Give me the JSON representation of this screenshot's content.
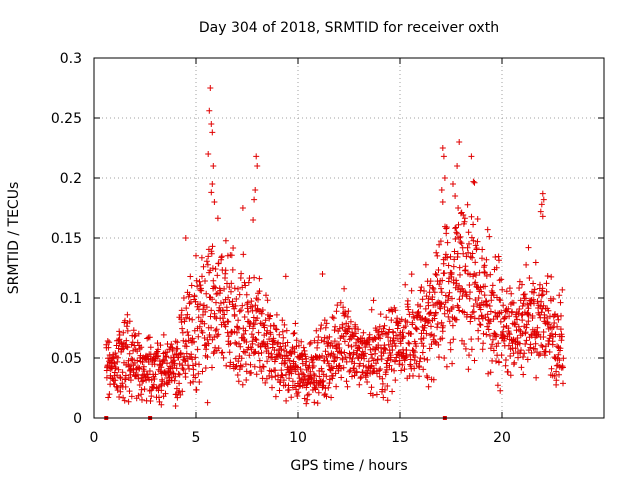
{
  "chart_data": {
    "type": "scatter",
    "title": "Day 304 of 2018, SRMTID for receiver oxth",
    "xlabel": "GPS time / hours",
    "ylabel": "SRMTID / TECUs",
    "xlim": [
      0,
      25
    ],
    "ylim": [
      0,
      0.3
    ],
    "grid": true,
    "marker": "plus",
    "color": "#e00000",
    "x_ticks": [
      0,
      5,
      10,
      15,
      20
    ],
    "x_tick_labels": [
      "0",
      "5",
      "10",
      "15",
      "20"
    ],
    "y_ticks": [
      0,
      0.05,
      0.1,
      0.15,
      0.2,
      0.25,
      0.3
    ],
    "y_tick_labels": [
      "0",
      "0.05",
      "0.1",
      "0.15",
      "0.2",
      "0.25",
      "0.3"
    ],
    "gap_markers_x": [
      0.6,
      2.75,
      17.2
    ],
    "profile_hours": [
      0.6,
      1.0,
      1.5,
      2.0,
      2.5,
      3.0,
      3.5,
      4.0,
      4.5,
      5.0,
      5.5,
      6.0,
      6.5,
      7.0,
      7.5,
      8.0,
      8.5,
      9.0,
      9.5,
      10.0,
      10.5,
      11.0,
      11.5,
      12.0,
      12.5,
      13.0,
      13.5,
      14.0,
      14.5,
      15.0,
      15.5,
      16.0,
      16.5,
      17.0,
      17.5,
      18.0,
      18.5,
      19.0,
      19.5,
      20.0,
      20.5,
      21.0,
      21.5,
      22.0,
      22.5,
      23.0
    ],
    "profile_median": [
      0.045,
      0.045,
      0.047,
      0.04,
      0.042,
      0.04,
      0.04,
      0.045,
      0.06,
      0.075,
      0.09,
      0.1,
      0.095,
      0.085,
      0.075,
      0.075,
      0.06,
      0.05,
      0.045,
      0.04,
      0.038,
      0.04,
      0.05,
      0.06,
      0.06,
      0.05,
      0.05,
      0.05,
      0.055,
      0.065,
      0.07,
      0.07,
      0.085,
      0.095,
      0.11,
      0.12,
      0.11,
      0.105,
      0.09,
      0.075,
      0.075,
      0.08,
      0.08,
      0.08,
      0.075,
      0.06
    ],
    "profile_spread": [
      0.01,
      0.012,
      0.018,
      0.015,
      0.012,
      0.012,
      0.012,
      0.015,
      0.022,
      0.025,
      0.03,
      0.03,
      0.028,
      0.025,
      0.022,
      0.022,
      0.018,
      0.015,
      0.015,
      0.015,
      0.015,
      0.015,
      0.018,
      0.02,
      0.018,
      0.015,
      0.015,
      0.018,
      0.018,
      0.02,
      0.02,
      0.02,
      0.025,
      0.03,
      0.03,
      0.03,
      0.03,
      0.028,
      0.025,
      0.022,
      0.02,
      0.02,
      0.02,
      0.02,
      0.02,
      0.018
    ],
    "outliers": [
      {
        "x": 5.7,
        "y": 0.275
      },
      {
        "x": 5.65,
        "y": 0.256
      },
      {
        "x": 5.75,
        "y": 0.245
      },
      {
        "x": 5.8,
        "y": 0.238
      },
      {
        "x": 5.6,
        "y": 0.22
      },
      {
        "x": 5.85,
        "y": 0.21
      },
      {
        "x": 5.8,
        "y": 0.195
      },
      {
        "x": 5.75,
        "y": 0.188
      },
      {
        "x": 5.9,
        "y": 0.18
      },
      {
        "x": 4.5,
        "y": 0.15
      },
      {
        "x": 7.3,
        "y": 0.175
      },
      {
        "x": 7.95,
        "y": 0.218
      },
      {
        "x": 8.0,
        "y": 0.21
      },
      {
        "x": 7.9,
        "y": 0.19
      },
      {
        "x": 7.85,
        "y": 0.182
      },
      {
        "x": 7.8,
        "y": 0.165
      },
      {
        "x": 17.1,
        "y": 0.225
      },
      {
        "x": 17.15,
        "y": 0.218
      },
      {
        "x": 17.2,
        "y": 0.2
      },
      {
        "x": 17.05,
        "y": 0.19
      },
      {
        "x": 17.1,
        "y": 0.18
      },
      {
        "x": 17.9,
        "y": 0.23
      },
      {
        "x": 17.8,
        "y": 0.21
      },
      {
        "x": 17.6,
        "y": 0.195
      },
      {
        "x": 17.7,
        "y": 0.185
      },
      {
        "x": 17.85,
        "y": 0.175
      },
      {
        "x": 18.5,
        "y": 0.218
      },
      {
        "x": 18.6,
        "y": 0.197
      },
      {
        "x": 18.65,
        "y": 0.196
      },
      {
        "x": 22.0,
        "y": 0.187
      },
      {
        "x": 22.05,
        "y": 0.182
      },
      {
        "x": 21.95,
        "y": 0.178
      },
      {
        "x": 21.9,
        "y": 0.172
      },
      {
        "x": 22.0,
        "y": 0.168
      },
      {
        "x": 21.3,
        "y": 0.142
      },
      {
        "x": 9.4,
        "y": 0.118
      },
      {
        "x": 11.2,
        "y": 0.12
      },
      {
        "x": 13.7,
        "y": 0.098
      },
      {
        "x": 3.3,
        "y": 0.011
      },
      {
        "x": 4.0,
        "y": 0.01
      },
      {
        "x": 10.4,
        "y": 0.012
      },
      {
        "x": 10.8,
        "y": 0.013
      },
      {
        "x": 16.4,
        "y": 0.026
      }
    ]
  }
}
